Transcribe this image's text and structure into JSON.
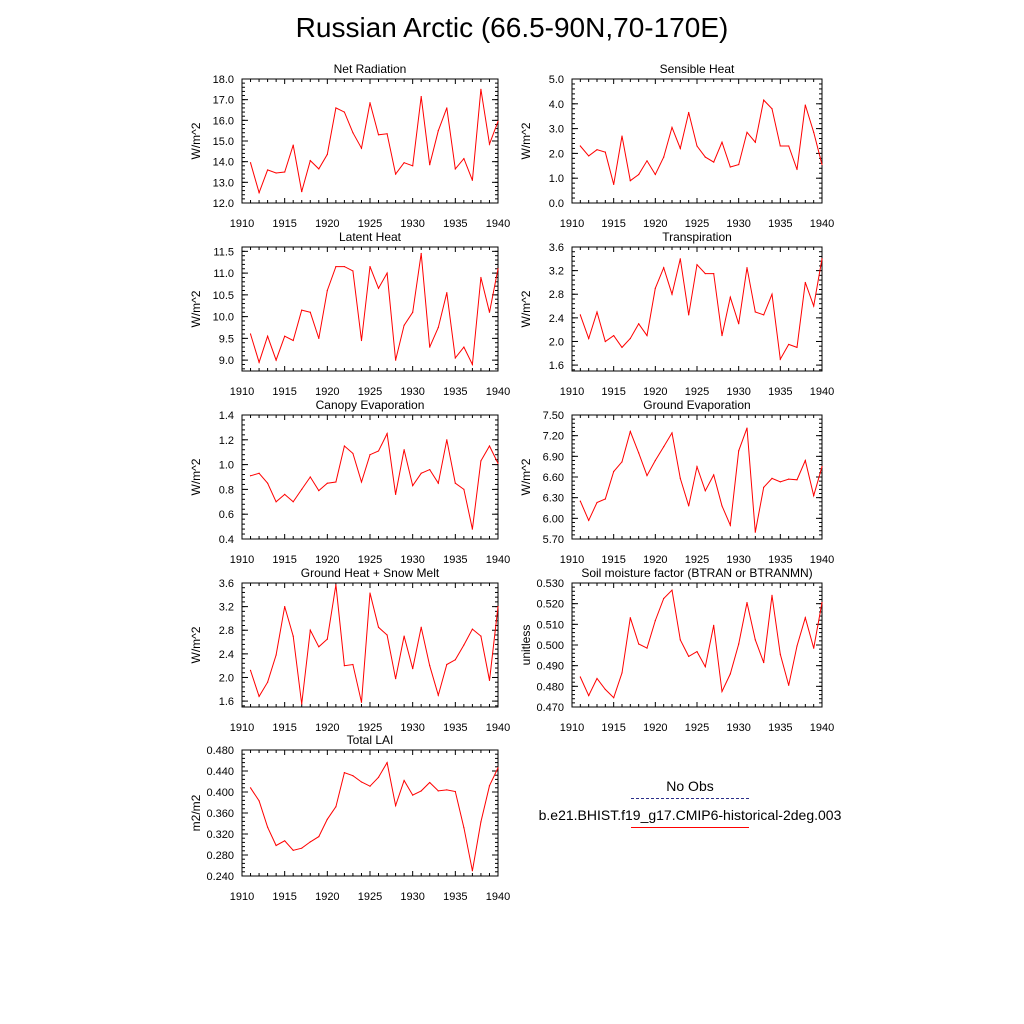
{
  "title": "Russian Arctic (66.5-90N,70-170E)",
  "legend": {
    "obs_label": "No Obs",
    "model_label": "b.e21.BHIST.f19_g17.CMIP6-historical-2deg.003",
    "obs_color": "#2b2f8a",
    "model_color": "#ff0000"
  },
  "chart_data": [
    {
      "type": "line",
      "title": "Net Radiation",
      "ylabel": "W/m^2",
      "xlim": [
        1910,
        1940
      ],
      "ylim": [
        12.0,
        18.0
      ],
      "xticks": [
        1910,
        1915,
        1920,
        1925,
        1930,
        1935,
        1940
      ],
      "yticks": [
        "12.0",
        "13.0",
        "14.0",
        "15.0",
        "16.0",
        "17.0",
        "18.0"
      ],
      "series": [
        {
          "color": "#ff0000",
          "x": [
            1911,
            1912,
            1913,
            1914,
            1915,
            1916,
            1917,
            1918,
            1919,
            1920,
            1921,
            1922,
            1923,
            1924,
            1925,
            1926,
            1927,
            1928,
            1929,
            1930,
            1931,
            1932,
            1933,
            1934,
            1935,
            1936,
            1937,
            1938,
            1939,
            1940
          ],
          "y": [
            13.95,
            12.5,
            13.6,
            13.45,
            13.5,
            14.8,
            12.55,
            14.05,
            13.65,
            14.35,
            16.6,
            16.4,
            15.4,
            14.65,
            16.85,
            15.3,
            15.35,
            13.4,
            13.95,
            13.8,
            17.15,
            13.85,
            15.5,
            16.6,
            13.65,
            14.15,
            13.1,
            17.5,
            14.85,
            15.95
          ]
        }
      ]
    },
    {
      "type": "line",
      "title": "Sensible Heat",
      "ylabel": "W/m^2",
      "xlim": [
        1910,
        1940
      ],
      "ylim": [
        0.0,
        5.0
      ],
      "xticks": [
        1910,
        1915,
        1920,
        1925,
        1930,
        1935,
        1940
      ],
      "yticks": [
        "0.0",
        "1.0",
        "2.0",
        "3.0",
        "4.0",
        "5.0"
      ],
      "series": [
        {
          "color": "#ff0000",
          "x": [
            1911,
            1912,
            1913,
            1914,
            1915,
            1916,
            1917,
            1918,
            1919,
            1920,
            1921,
            1922,
            1923,
            1924,
            1925,
            1926,
            1927,
            1928,
            1929,
            1930,
            1931,
            1932,
            1933,
            1934,
            1935,
            1936,
            1937,
            1938,
            1939,
            1940
          ],
          "y": [
            2.3,
            1.9,
            2.15,
            2.05,
            0.75,
            2.7,
            0.9,
            1.15,
            1.7,
            1.15,
            1.85,
            3.05,
            2.2,
            3.65,
            2.3,
            1.85,
            1.65,
            2.45,
            1.45,
            1.55,
            2.85,
            2.45,
            4.15,
            3.8,
            2.3,
            2.3,
            1.35,
            3.95,
            2.85,
            1.55
          ]
        }
      ]
    },
    {
      "type": "line",
      "title": "Latent Heat",
      "ylabel": "W/m^2",
      "xlim": [
        1910,
        1940
      ],
      "ylim": [
        8.75,
        11.6
      ],
      "xticks": [
        1910,
        1915,
        1920,
        1925,
        1930,
        1935,
        1940
      ],
      "yticks": [
        "9.0",
        "9.5",
        "10.0",
        "10.5",
        "11.0",
        "11.5"
      ],
      "series": [
        {
          "color": "#ff0000",
          "x": [
            1911,
            1912,
            1913,
            1914,
            1915,
            1916,
            1917,
            1918,
            1919,
            1920,
            1921,
            1922,
            1923,
            1924,
            1925,
            1926,
            1927,
            1928,
            1929,
            1930,
            1931,
            1932,
            1933,
            1934,
            1935,
            1936,
            1937,
            1938,
            1939,
            1940
          ],
          "y": [
            9.6,
            8.95,
            9.55,
            9.0,
            9.55,
            9.45,
            10.15,
            10.1,
            9.5,
            10.6,
            11.15,
            11.15,
            11.05,
            9.45,
            11.15,
            10.65,
            11.0,
            9.0,
            9.8,
            10.1,
            11.45,
            9.3,
            9.75,
            10.55,
            9.05,
            9.3,
            8.9,
            10.9,
            10.1,
            11.1
          ]
        }
      ]
    },
    {
      "type": "line",
      "title": "Transpiration",
      "ylabel": "W/m^2",
      "xlim": [
        1910,
        1940
      ],
      "ylim": [
        1.5,
        3.6
      ],
      "xticks": [
        1910,
        1915,
        1920,
        1925,
        1930,
        1935,
        1940
      ],
      "yticks": [
        "1.6",
        "2.0",
        "2.4",
        "2.8",
        "3.2",
        "3.6"
      ],
      "series": [
        {
          "color": "#ff0000",
          "x": [
            1911,
            1912,
            1913,
            1914,
            1915,
            1916,
            1917,
            1918,
            1919,
            1920,
            1921,
            1922,
            1923,
            1924,
            1925,
            1926,
            1927,
            1928,
            1929,
            1930,
            1931,
            1932,
            1933,
            1934,
            1935,
            1936,
            1937,
            1938,
            1939,
            1940
          ],
          "y": [
            2.45,
            2.05,
            2.5,
            2.0,
            2.1,
            1.9,
            2.05,
            2.3,
            2.1,
            2.9,
            3.25,
            2.8,
            3.4,
            2.45,
            3.3,
            3.15,
            3.15,
            2.1,
            2.75,
            2.3,
            3.25,
            2.5,
            2.45,
            2.8,
            1.7,
            1.95,
            1.9,
            3.0,
            2.6,
            3.4
          ]
        }
      ]
    },
    {
      "type": "line",
      "title": "Canopy Evaporation",
      "ylabel": "W/m^2",
      "xlim": [
        1910,
        1940
      ],
      "ylim": [
        0.4,
        1.4
      ],
      "xticks": [
        1910,
        1915,
        1920,
        1925,
        1930,
        1935,
        1940
      ],
      "yticks": [
        "0.4",
        "0.6",
        "0.8",
        "1.0",
        "1.2",
        "1.4"
      ],
      "series": [
        {
          "color": "#ff0000",
          "x": [
            1911,
            1912,
            1913,
            1914,
            1915,
            1916,
            1917,
            1918,
            1919,
            1920,
            1921,
            1922,
            1923,
            1924,
            1925,
            1926,
            1927,
            1928,
            1929,
            1930,
            1931,
            1932,
            1933,
            1934,
            1935,
            1936,
            1937,
            1938,
            1939,
            1940
          ],
          "y": [
            0.91,
            0.93,
            0.85,
            0.7,
            0.76,
            0.7,
            0.8,
            0.9,
            0.79,
            0.85,
            0.86,
            1.15,
            1.09,
            0.86,
            1.08,
            1.11,
            1.25,
            0.76,
            1.12,
            0.83,
            0.93,
            0.96,
            0.85,
            1.2,
            0.85,
            0.8,
            0.48,
            1.03,
            1.15,
            1.01
          ]
        }
      ]
    },
    {
      "type": "line",
      "title": "Ground Evaporation",
      "ylabel": "W/m^2",
      "xlim": [
        1910,
        1940
      ],
      "ylim": [
        5.7,
        7.5
      ],
      "xticks": [
        1910,
        1915,
        1920,
        1925,
        1930,
        1935,
        1940
      ],
      "yticks": [
        "5.70",
        "6.00",
        "6.30",
        "6.60",
        "6.90",
        "7.20",
        "7.50"
      ],
      "series": [
        {
          "color": "#ff0000",
          "x": [
            1911,
            1912,
            1913,
            1914,
            1915,
            1916,
            1917,
            1918,
            1919,
            1920,
            1921,
            1922,
            1923,
            1924,
            1925,
            1926,
            1927,
            1928,
            1929,
            1930,
            1931,
            1932,
            1933,
            1934,
            1935,
            1936,
            1937,
            1938,
            1939,
            1940
          ],
          "y": [
            6.25,
            5.97,
            6.23,
            6.28,
            6.68,
            6.82,
            7.26,
            6.95,
            6.62,
            6.84,
            7.04,
            7.24,
            6.58,
            6.18,
            6.75,
            6.4,
            6.63,
            6.18,
            5.9,
            6.98,
            7.31,
            5.8,
            6.45,
            6.58,
            6.53,
            6.57,
            6.56,
            6.84,
            6.33,
            6.75
          ]
        }
      ]
    },
    {
      "type": "line",
      "title": "Ground Heat + Snow Melt",
      "ylabel": "W/m^2",
      "xlim": [
        1910,
        1940
      ],
      "ylim": [
        1.5,
        3.6
      ],
      "xticks": [
        1910,
        1915,
        1920,
        1925,
        1930,
        1935,
        1940
      ],
      "yticks": [
        "1.6",
        "2.0",
        "2.4",
        "2.8",
        "3.2",
        "3.6"
      ],
      "series": [
        {
          "color": "#ff0000",
          "x": [
            1911,
            1912,
            1913,
            1914,
            1915,
            1916,
            1917,
            1918,
            1919,
            1920,
            1921,
            1922,
            1923,
            1924,
            1925,
            1926,
            1927,
            1928,
            1929,
            1930,
            1931,
            1932,
            1933,
            1934,
            1935,
            1936,
            1937,
            1938,
            1939,
            1940
          ],
          "y": [
            2.12,
            1.68,
            1.92,
            2.38,
            3.2,
            2.7,
            1.55,
            2.8,
            2.52,
            2.65,
            3.57,
            2.2,
            2.22,
            1.58,
            3.43,
            2.85,
            2.72,
            1.98,
            2.7,
            2.15,
            2.85,
            2.2,
            1.7,
            2.22,
            2.3,
            2.55,
            2.82,
            2.7,
            1.95,
            3.2
          ]
        }
      ]
    },
    {
      "type": "line",
      "title": "Soil moisture factor (BTRAN or BTRANMN)",
      "ylabel": "unitless",
      "xlim": [
        1910,
        1940
      ],
      "ylim": [
        0.47,
        0.53
      ],
      "xticks": [
        1910,
        1915,
        1920,
        1925,
        1930,
        1935,
        1940
      ],
      "yticks": [
        "0.470",
        "0.480",
        "0.490",
        "0.500",
        "0.510",
        "0.520",
        "0.530"
      ],
      "series": [
        {
          "color": "#ff0000",
          "x": [
            1911,
            1912,
            1913,
            1914,
            1915,
            1916,
            1917,
            1918,
            1919,
            1920,
            1921,
            1922,
            1923,
            1924,
            1925,
            1926,
            1927,
            1928,
            1929,
            1930,
            1931,
            1932,
            1933,
            1934,
            1935,
            1936,
            1937,
            1938,
            1939,
            1940
          ],
          "y": [
            0.4845,
            0.4755,
            0.4838,
            0.4785,
            0.4745,
            0.4865,
            0.5132,
            0.5005,
            0.4985,
            0.5118,
            0.5225,
            0.5265,
            0.5025,
            0.4945,
            0.4968,
            0.4895,
            0.5095,
            0.4775,
            0.486,
            0.5005,
            0.5205,
            0.5025,
            0.4915,
            0.524,
            0.4955,
            0.4805,
            0.4995,
            0.5132,
            0.4985,
            0.5205
          ]
        }
      ]
    },
    {
      "type": "line",
      "title": "Total LAI",
      "ylabel": "m2/m2",
      "xlim": [
        1910,
        1940
      ],
      "ylim": [
        0.24,
        0.48
      ],
      "xticks": [
        1910,
        1915,
        1920,
        1925,
        1930,
        1935,
        1940
      ],
      "yticks": [
        "0.240",
        "0.280",
        "0.320",
        "0.360",
        "0.400",
        "0.440",
        "0.480"
      ],
      "series": [
        {
          "color": "#ff0000",
          "x": [
            1911,
            1912,
            1913,
            1914,
            1915,
            1916,
            1917,
            1918,
            1919,
            1920,
            1921,
            1922,
            1923,
            1924,
            1925,
            1926,
            1927,
            1928,
            1929,
            1930,
            1931,
            1932,
            1933,
            1934,
            1935,
            1936,
            1937,
            1938,
            1939,
            1940
          ],
          "y": [
            0.408,
            0.383,
            0.333,
            0.298,
            0.307,
            0.289,
            0.293,
            0.305,
            0.315,
            0.348,
            0.372,
            0.437,
            0.431,
            0.419,
            0.411,
            0.428,
            0.456,
            0.374,
            0.422,
            0.394,
            0.402,
            0.418,
            0.402,
            0.404,
            0.401,
            0.332,
            0.25,
            0.343,
            0.412,
            0.446
          ]
        }
      ]
    }
  ]
}
